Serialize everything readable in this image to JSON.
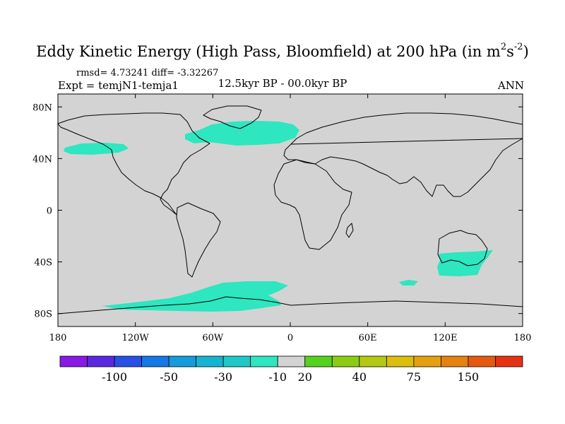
{
  "title": {
    "main": "Eddy Kinetic Energy (High Pass, Bloomfield) at 200 hPa (in m",
    "sup1": "2",
    "mid": "s",
    "sup2": "-2",
    "end": ")"
  },
  "stats": {
    "rmsd_line": "rmsd= 4.73241 diff= -3.32267",
    "expt_line": "Expt = temjN1-temja1",
    "period": "12.5kyr BP - 00.0kyr BP",
    "season": "ANN"
  },
  "map": {
    "lat_labels": [
      "80N",
      "40N",
      "0",
      "40S",
      "80S"
    ],
    "lat_values": [
      80,
      40,
      0,
      -40,
      -80
    ],
    "lon_labels": [
      "180",
      "120W",
      "60W",
      "0",
      "60E",
      "120E",
      "180"
    ],
    "lon_values": [
      -180,
      -120,
      -60,
      0,
      60,
      120,
      180
    ],
    "lat_range": [
      -90,
      90
    ],
    "lon_range": [
      -180,
      180
    ],
    "background_color": "#d3d3d3",
    "fill_color": "#2ee6c0"
  },
  "colorbar": {
    "tick_labels": [
      "-100",
      "-50",
      "-30",
      "-10",
      "20",
      "40",
      "75",
      "150"
    ],
    "colors": [
      "#8a19e6",
      "#5a28e0",
      "#2850e6",
      "#1478e6",
      "#149bdc",
      "#14b4d2",
      "#1ec8c8",
      "#2ee6c0",
      "#d3d3d3",
      "#55d21e",
      "#8ccd14",
      "#b4c814",
      "#dcbe0f",
      "#e6a00f",
      "#e6820f",
      "#e65a0f",
      "#e63214"
    ]
  }
}
